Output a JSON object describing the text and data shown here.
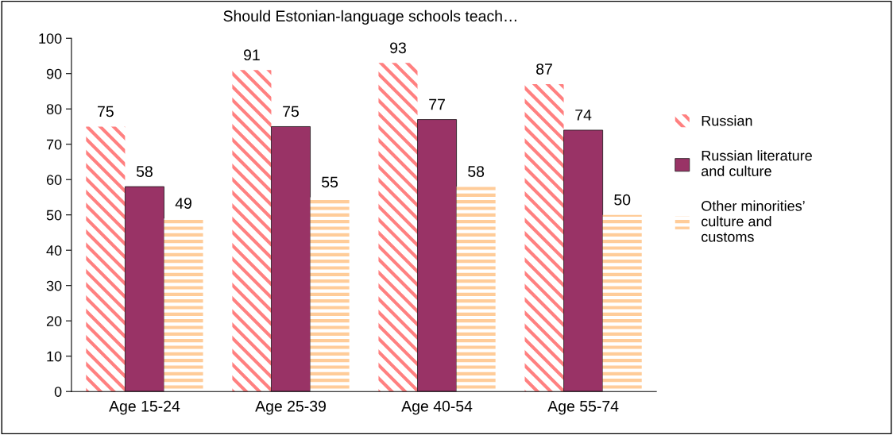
{
  "chart_data": {
    "type": "bar",
    "title": "Should Estonian-language schools teach…",
    "categories": [
      "Age 15-24",
      "Age 25-39",
      "Age 40-54",
      "Age 55-74"
    ],
    "series": [
      {
        "name": "Russian",
        "color": "#ff8080",
        "values": [
          75,
          91,
          93,
          87
        ]
      },
      {
        "name": "Russian literature and culture",
        "color": "#993366",
        "values": [
          58,
          75,
          77,
          74
        ]
      },
      {
        "name": "Other minorities’ culture and customs",
        "color": "#ffcc99",
        "values": [
          49,
          55,
          58,
          50
        ]
      }
    ],
    "ylim": [
      0,
      100
    ],
    "yticks": [
      0,
      10,
      20,
      30,
      40,
      50,
      60,
      70,
      80,
      90,
      100
    ],
    "data_labels": true,
    "grid": false,
    "legend": "right"
  }
}
